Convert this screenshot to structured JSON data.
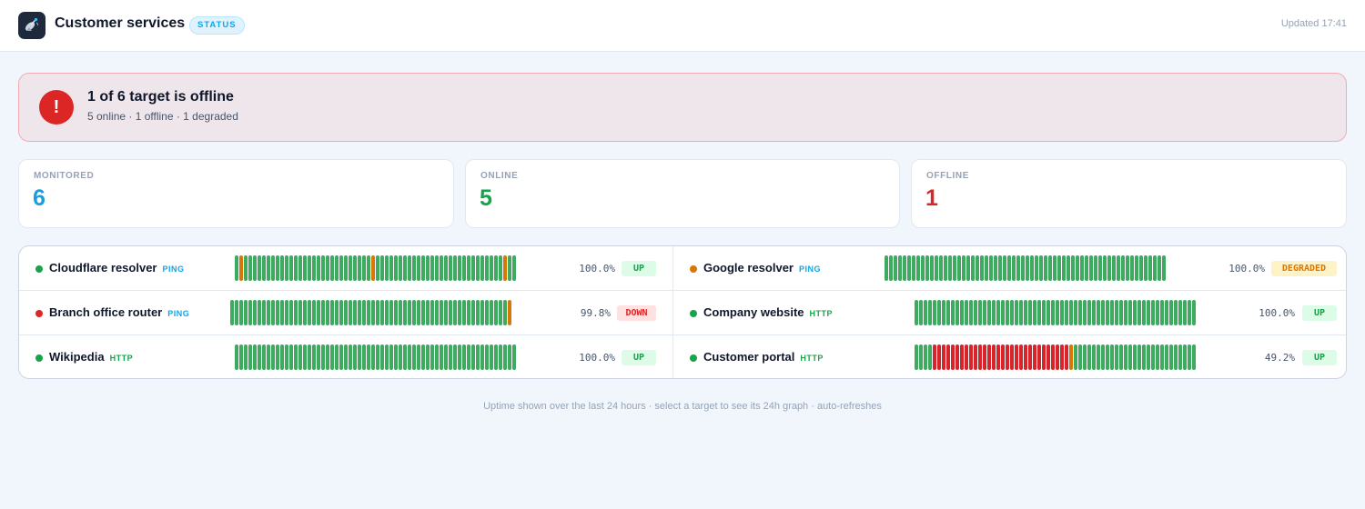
{
  "header": {
    "title": "Customer services",
    "pill": "STATUS",
    "updated": "Updated 17:41",
    "icon": "satellite-dish-icon"
  },
  "alert": {
    "icon": "!",
    "title": "1 of 6 target is offline",
    "subtitle": "5 online · 1 offline · 1 degraded"
  },
  "stats": [
    {
      "label": "MONITORED",
      "value": "6",
      "color": "#1a9de0"
    },
    {
      "label": "ONLINE",
      "value": "5",
      "color": "#16a34a"
    },
    {
      "label": "OFFLINE",
      "value": "1",
      "color": "#dc2626"
    }
  ],
  "colors": {
    "up": "#3daa5f",
    "degraded": "#d97706",
    "down": "#d7262b",
    "ping": "#0ea5e9",
    "http": "#16a34a"
  },
  "targets": [
    {
      "name": "Cloudflare resolver",
      "protocol": "PING",
      "status_color": "#16a34a",
      "uptime": "100.0%",
      "state": "UP",
      "badge_bg": "#dcfce7",
      "badge_fg": "#16a34a",
      "bars": "gdggggggggggggggggggggggggggggdggggggggggggggggggggggggggggdgg"
    },
    {
      "name": "Google resolver",
      "protocol": "PING",
      "status_color": "#d97706",
      "uptime": "100.0%",
      "state": "DEGRADED",
      "badge_bg": "#fef3c7",
      "badge_fg": "#d97706",
      "bars": "gggggggggggggggggggggggggggggggggggggggggggggggggggggggggggggg"
    },
    {
      "name": "Branch office router",
      "protocol": "PING",
      "status_color": "#dc2626",
      "uptime": "99.8%",
      "state": "DOWN",
      "badge_bg": "#fee2e2",
      "badge_fg": "#dc2626",
      "bars": "gggggggggggggggggggggggggggggggggggggggggggggggggggggggggggggd"
    },
    {
      "name": "Company website",
      "protocol": "HTTP",
      "status_color": "#16a34a",
      "uptime": "100.0%",
      "state": "UP",
      "badge_bg": "#dcfce7",
      "badge_fg": "#16a34a",
      "bars": "gggggggggggggggggggggggggggggggggggggggggggggggggggggggggggggg"
    },
    {
      "name": "Wikipedia",
      "protocol": "HTTP",
      "status_color": "#16a34a",
      "uptime": "100.0%",
      "state": "UP",
      "badge_bg": "#dcfce7",
      "badge_fg": "#16a34a",
      "bars": "gggggggggggggggggggggggggggggggggggggggggggggggggggggggggggggg"
    },
    {
      "name": "Customer portal",
      "protocol": "HTTP",
      "status_color": "#16a34a",
      "uptime": "49.2%",
      "state": "UP",
      "badge_bg": "#dcfce7",
      "badge_fg": "#16a34a",
      "bars": "ggggrrrrrrrrrrrrrrrrrrrrrrrrrrrrrrdggggggggggggggggggggggggggg"
    }
  ],
  "footer": "Uptime shown over the last 24 hours · select a target to see its 24h graph · auto-refreshes"
}
